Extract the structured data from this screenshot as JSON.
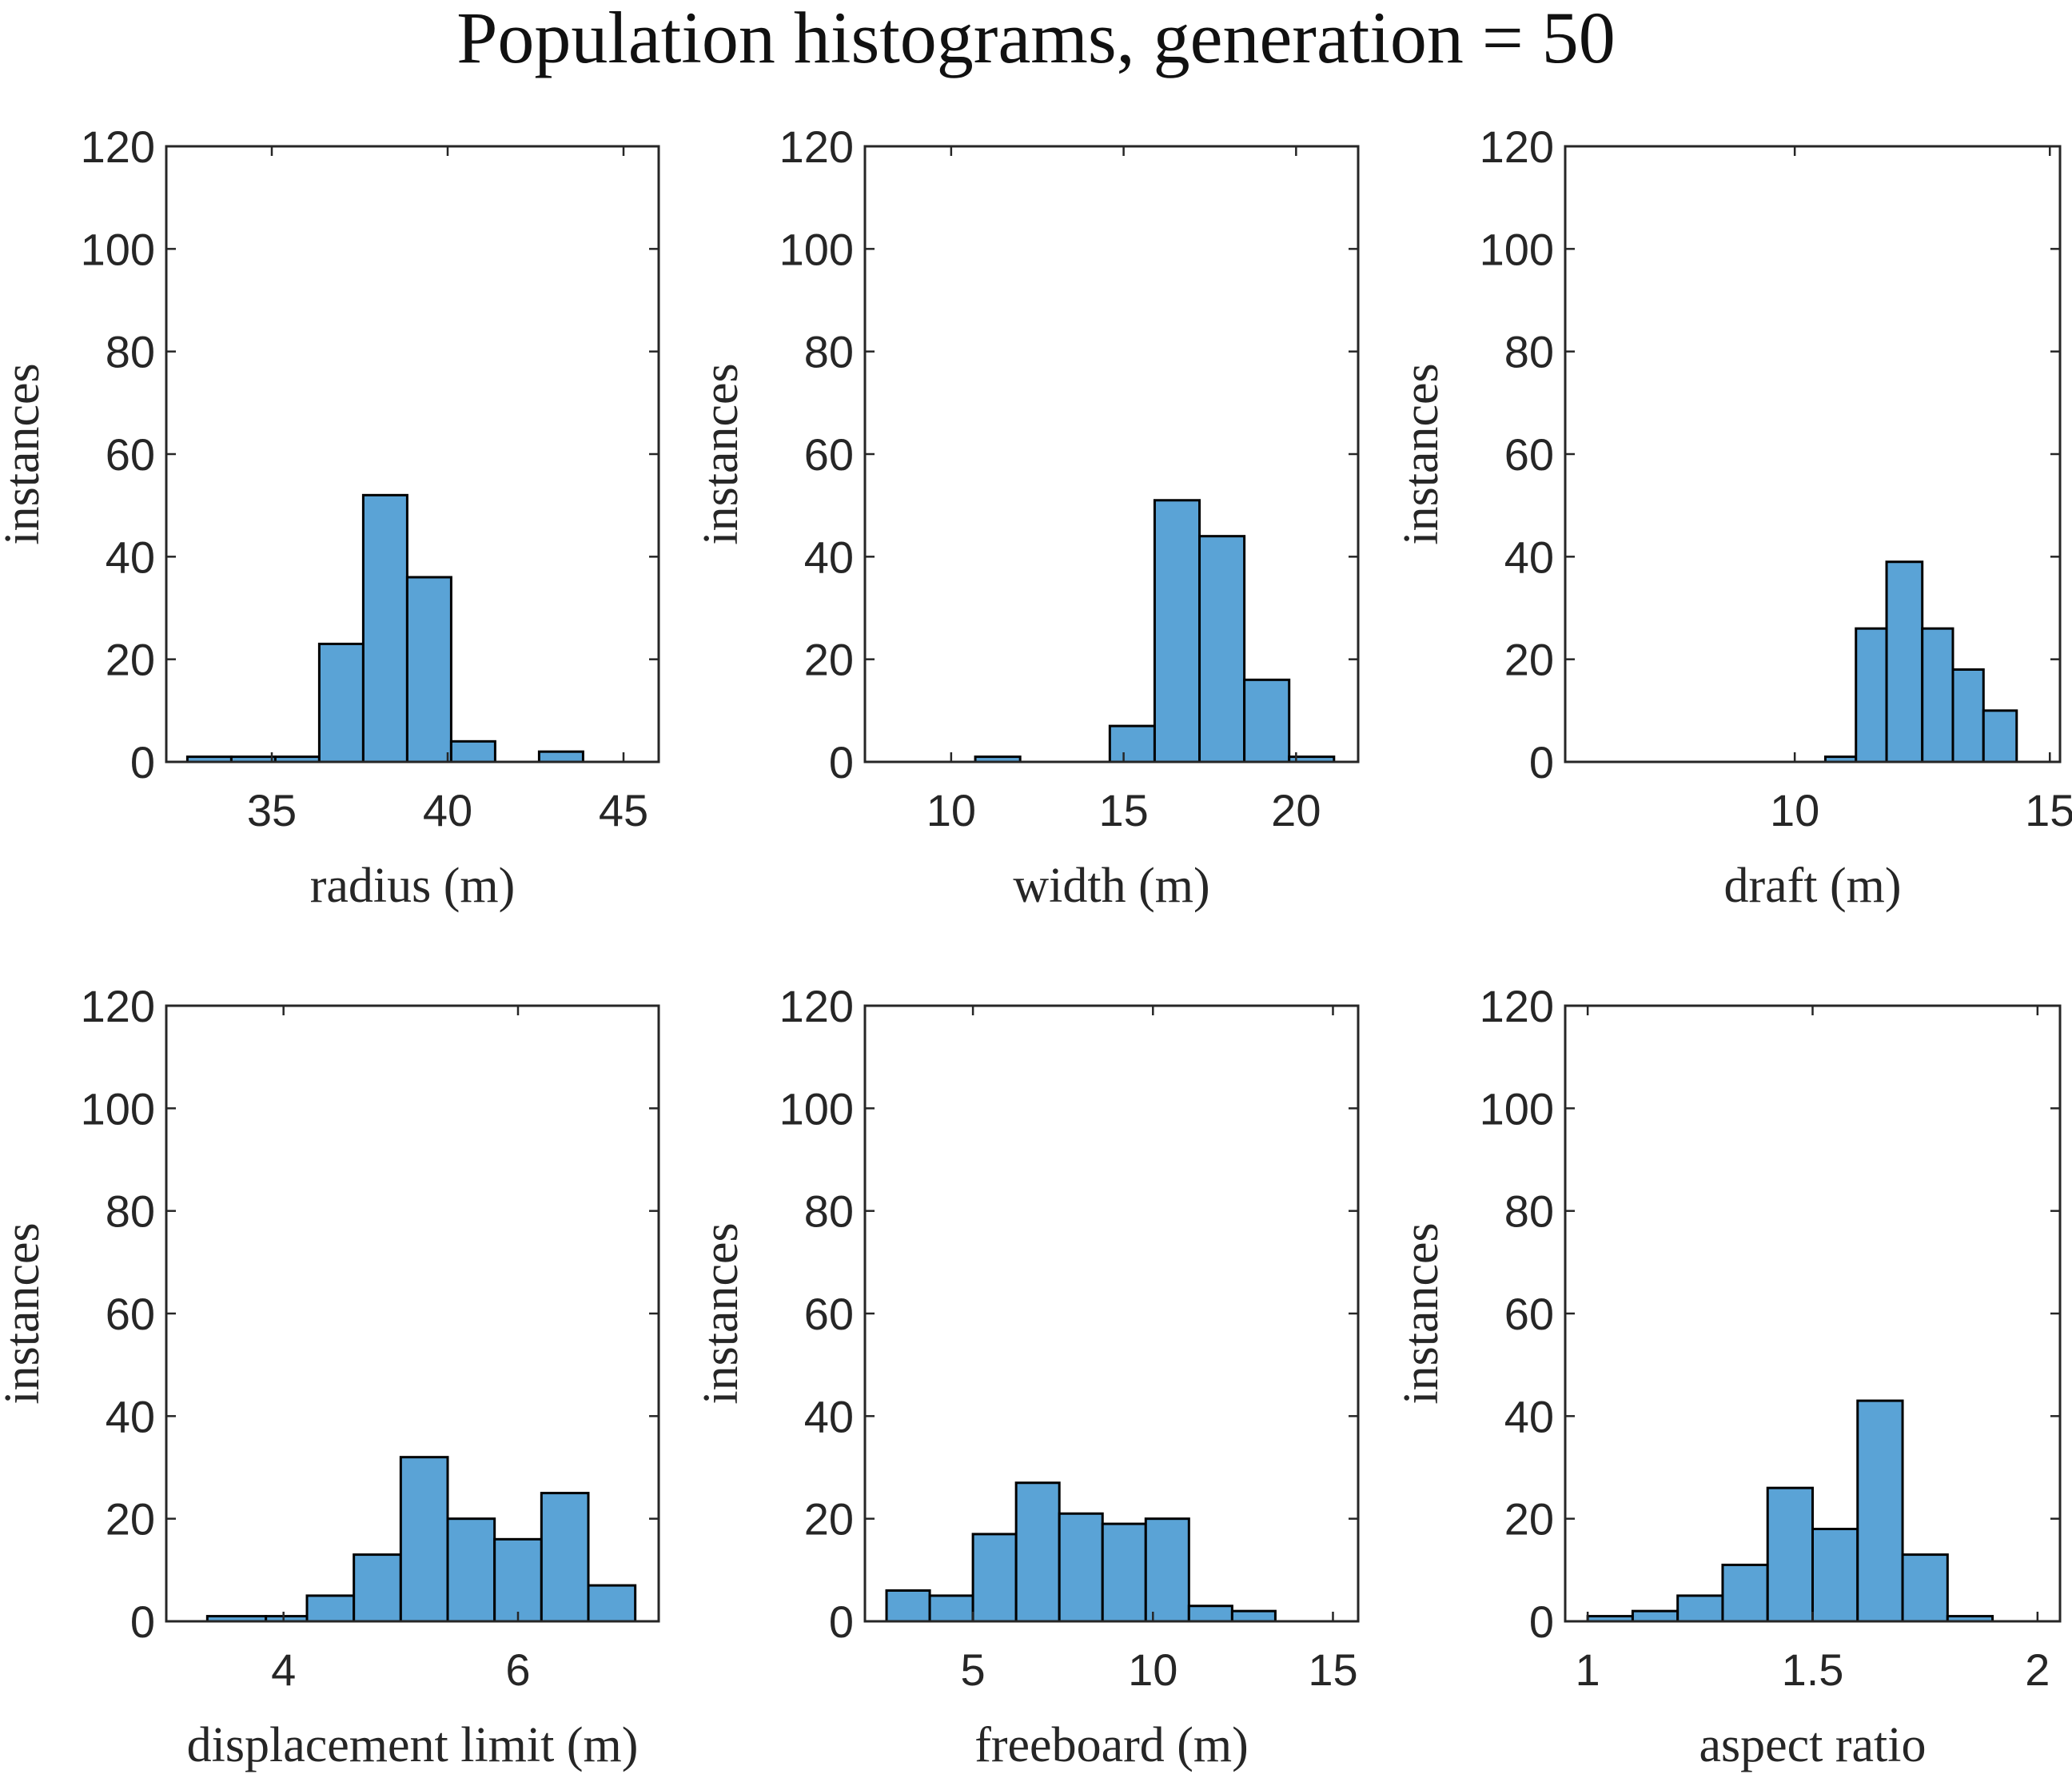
{
  "chart_data": {
    "type": "bar",
    "title": "Population histograms, generation = 50",
    "bar_color": "#5aa3d6",
    "subplots": [
      {
        "xlabel": "radius (m)",
        "ylabel": "instances",
        "xlim": [
          32,
          46
        ],
        "ylim": [
          0,
          120
        ],
        "xticks": [
          35,
          40,
          45
        ],
        "xtick_labels": [
          "35",
          "40",
          "45"
        ],
        "yticks": [
          0,
          20,
          40,
          60,
          80,
          100,
          120
        ],
        "ytick_labels": [
          "0",
          "20",
          "40",
          "60",
          "80",
          "100",
          "120"
        ],
        "bin_edges": [
          32.6,
          33.85,
          35.1,
          36.35,
          37.6,
          38.85,
          40.1,
          41.35,
          42.6,
          43.85
        ],
        "counts": [
          1,
          1,
          1,
          23,
          52,
          36,
          4,
          0,
          2
        ]
      },
      {
        "xlabel": "width (m)",
        "ylabel": "instances",
        "xlim": [
          7.5,
          21.8
        ],
        "ylim": [
          0,
          120
        ],
        "xticks": [
          10,
          15,
          20
        ],
        "xtick_labels": [
          "10",
          "15",
          "20"
        ],
        "yticks": [
          0,
          20,
          40,
          60,
          80,
          100,
          120
        ],
        "ytick_labels": [
          "0",
          "20",
          "40",
          "60",
          "80",
          "100",
          "120"
        ],
        "bin_edges": [
          8.1,
          9.4,
          10.7,
          12.0,
          13.3,
          14.6,
          15.9,
          17.2,
          18.5,
          19.8,
          21.1
        ],
        "counts": [
          0,
          0,
          1,
          0,
          0,
          7,
          51,
          44,
          16,
          1
        ]
      },
      {
        "xlabel": "draft (m)",
        "ylabel": "instances",
        "xlim": [
          5.5,
          15.2
        ],
        "ylim": [
          0,
          120
        ],
        "xticks": [
          10,
          15
        ],
        "xtick_labels": [
          "10",
          "15"
        ],
        "yticks": [
          0,
          20,
          40,
          60,
          80,
          100,
          120
        ],
        "ytick_labels": [
          "0",
          "20",
          "40",
          "60",
          "80",
          "100",
          "120"
        ],
        "bin_edges": [
          10.6,
          11.2,
          11.8,
          12.5,
          13.1,
          13.7,
          14.35,
          14.95
        ],
        "counts": [
          1,
          26,
          39,
          26,
          18,
          10,
          0
        ]
      },
      {
        "xlabel": "displacement limit (m)",
        "ylabel": "instances",
        "xlim": [
          3.0,
          7.2
        ],
        "ylim": [
          0,
          120
        ],
        "xticks": [
          4,
          6
        ],
        "xtick_labels": [
          "4",
          "6"
        ],
        "yticks": [
          0,
          20,
          40,
          60,
          80,
          100,
          120
        ],
        "ytick_labels": [
          "0",
          "20",
          "40",
          "60",
          "80",
          "100",
          "120"
        ],
        "bin_edges": [
          3.35,
          3.85,
          4.2,
          4.6,
          5.0,
          5.4,
          5.8,
          6.2,
          6.6,
          7.0
        ],
        "counts": [
          1,
          1,
          5,
          13,
          32,
          20,
          16,
          25,
          7
        ]
      },
      {
        "xlabel": "freeboard (m)",
        "ylabel": "instances",
        "xlim": [
          2.0,
          15.7
        ],
        "ylim": [
          0,
          120
        ],
        "xticks": [
          5,
          10,
          15
        ],
        "xtick_labels": [
          "5",
          "10",
          "15"
        ],
        "yticks": [
          0,
          20,
          40,
          60,
          80,
          100,
          120
        ],
        "ytick_labels": [
          "0",
          "20",
          "40",
          "60",
          "80",
          "100",
          "120"
        ],
        "bin_edges": [
          2.6,
          3.8,
          5.0,
          6.2,
          7.4,
          8.6,
          9.8,
          11.0,
          12.2,
          13.4
        ],
        "counts": [
          6,
          5,
          17,
          27,
          21,
          19,
          20,
          3,
          2
        ]
      },
      {
        "xlabel": "aspect ratio",
        "ylabel": "instances",
        "xlim": [
          0.95,
          2.05
        ],
        "ylim": [
          0,
          120
        ],
        "xticks": [
          1,
          1.5,
          2
        ],
        "xtick_labels": [
          "1",
          "1.5",
          "2"
        ],
        "yticks": [
          0,
          20,
          40,
          60,
          80,
          100,
          120
        ],
        "ytick_labels": [
          "0",
          "20",
          "40",
          "60",
          "80",
          "100",
          "120"
        ],
        "bin_edges": [
          1.0,
          1.1,
          1.2,
          1.3,
          1.4,
          1.5,
          1.6,
          1.7,
          1.8,
          1.9
        ],
        "counts": [
          1,
          2,
          5,
          11,
          26,
          18,
          43,
          13,
          1
        ]
      }
    ]
  }
}
